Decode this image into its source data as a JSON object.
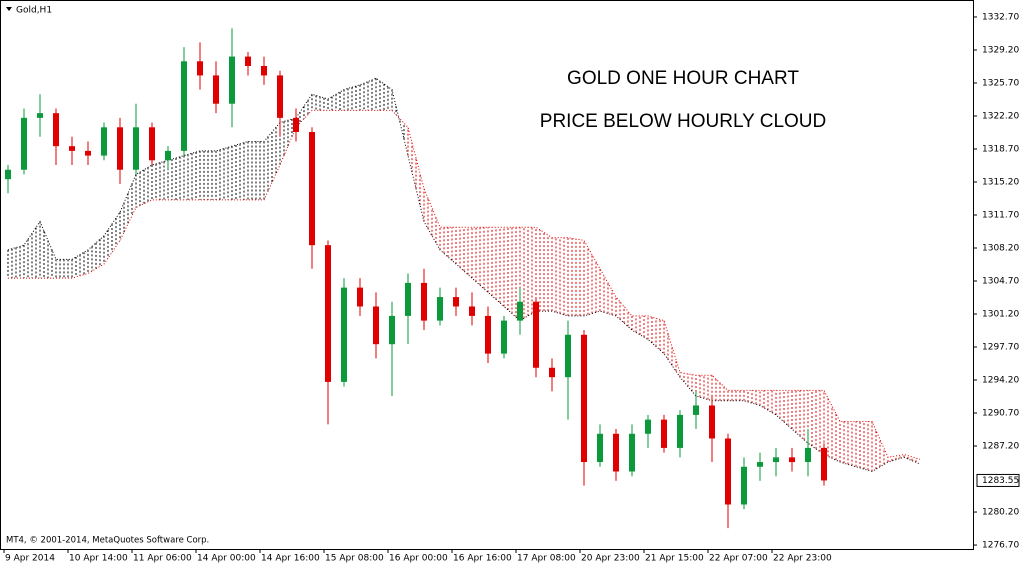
{
  "chart_data": {
    "type": "candlestick",
    "symbol": "Gold,H1",
    "title": "GOLD ONE HOUR CHART",
    "subtitle": "PRICE BELOW HOURLY CLOUD",
    "title_color": "#000000",
    "subtitle_color": "#0000ff",
    "copyright": "MT4, © 2001-2014, MetaQuotes Software Corp.",
    "up_color": "#0a9a3c",
    "down_color": "#e00000",
    "open": [
      1315.5,
      1316.5,
      1322,
      1322.5,
      1319,
      1318.5,
      1318,
      1321,
      1316.5,
      1321,
      1317.5,
      1318.5,
      1328,
      1326.5,
      1323.5,
      1328.5,
      1327.5,
      1326.5,
      1322,
      1320.5,
      1308.5,
      1294,
      1304,
      1302,
      1298,
      1301,
      1304.5,
      1300.5,
      1303,
      1302,
      1301,
      1297,
      1300.5,
      1302.5,
      1295.5,
      1294.5,
      1299,
      1285.5,
      1288.5,
      1284.5,
      1288.5,
      1290,
      1287,
      1290.5,
      1291.5,
      1288,
      1281,
      1285,
      1285.5,
      1286,
      1285.5,
      1287
    ],
    "high": [
      1317,
      1323,
      1324.5,
      1323,
      1320,
      1319.5,
      1321.5,
      1322,
      1323.5,
      1321.5,
      1319,
      1329.5,
      1330,
      1328,
      1331.5,
      1329,
      1328.5,
      1327,
      1323,
      1321,
      1309,
      1305,
      1305,
      1303.5,
      1302.5,
      1305.5,
      1306,
      1304,
      1304,
      1303.5,
      1302,
      1301,
      1304,
      1303,
      1296.5,
      1300.5,
      1299.5,
      1289.5,
      1289,
      1289.5,
      1290.5,
      1290.5,
      1291,
      1293,
      1292.5,
      1288.5,
      1286,
      1286.5,
      1287,
      1287,
      1289,
      1287.5
    ],
    "low": [
      1314,
      1316,
      1320,
      1317,
      1317,
      1317,
      1317.5,
      1315,
      1316,
      1317,
      1316.5,
      1318,
      1325,
      1322.5,
      1321,
      1326.5,
      1325.5,
      1320,
      1319.5,
      1306,
      1289.5,
      1293.5,
      1301,
      1296.5,
      1292.5,
      1298,
      1299.5,
      1300,
      1301,
      1300,
      1296,
      1296.5,
      1299,
      1294.5,
      1293,
      1290,
      1283,
      1285,
      1283.5,
      1284,
      1287,
      1286.5,
      1286,
      1289,
      1285.5,
      1278.5,
      1280.5,
      1283.5,
      1284,
      1284.5,
      1284,
      1283
    ],
    "close": [
      1316.5,
      1322,
      1322.5,
      1319,
      1318.5,
      1318,
      1321,
      1316.5,
      1321,
      1317.5,
      1318.5,
      1328,
      1326.5,
      1323.5,
      1328.5,
      1327.5,
      1326.5,
      1322,
      1320.5,
      1308.5,
      1294,
      1304,
      1302,
      1298,
      1301,
      1304.5,
      1300.5,
      1303,
      1302,
      1301,
      1297,
      1300.5,
      1302.5,
      1295.5,
      1294.5,
      1299,
      1285.5,
      1288.5,
      1284.5,
      1288.5,
      1290,
      1287,
      1290.5,
      1291.5,
      1288,
      1281,
      1285,
      1285.5,
      1286,
      1285.5,
      1287,
      1283.55
    ],
    "cloud": [
      {
        "color": "#000000",
        "values": [
          1308,
          1308.5,
          1311,
          1307,
          1307,
          1308,
          1309.5,
          1312,
          1316,
          1317,
          1317.5,
          1318,
          1318.5,
          1318.5,
          1319,
          1319.5,
          1319.5,
          1321.5,
          1322,
          1324.5,
          1324,
          1325,
          1325.5,
          1326.2,
          1325,
          1318,
          1311,
          1308,
          1306.5,
          1305,
          1303.5,
          1302,
          1300.5,
          1301.5,
          1301.5,
          1301,
          1301,
          1301.5,
          1301,
          1299.5,
          1298.5,
          1297,
          1294.5,
          1292.5,
          1292,
          1292,
          1292,
          1291.5,
          1290.5,
          1289,
          1287.5,
          1286.3,
          1285.5,
          1285,
          1284.5,
          1285.5,
          1286,
          1285.3
        ]
      },
      {
        "color": "#e00000",
        "values": [
          1305,
          1305,
          1305,
          1305,
          1305,
          1305.5,
          1306.5,
          1309,
          1312.5,
          1313.3,
          1313.3,
          1313.3,
          1313.3,
          1313.3,
          1313.3,
          1313.3,
          1313.3,
          1317,
          1321,
          1322.8,
          1322.8,
          1322.8,
          1322.8,
          1322.8,
          1322.8,
          1321,
          1314.5,
          1310.4,
          1310.4,
          1310.4,
          1310.4,
          1310.4,
          1310.4,
          1310.4,
          1309.3,
          1309.3,
          1309,
          1306,
          1303,
          1301,
          1301,
          1300.5,
          1295,
          1294.7,
          1294.7,
          1293.1,
          1293.1,
          1293.1,
          1293.1,
          1293.1,
          1293.1,
          1293.1,
          1289.8,
          1289.8,
          1289.8,
          1286,
          1286.3,
          1285.8
        ]
      }
    ],
    "last_price": 1283.55,
    "xticks": [
      {
        "value": 0,
        "label": "9 Apr 2014"
      },
      {
        "value": 4,
        "label": "10 Apr 14:00"
      },
      {
        "value": 8,
        "label": "11 Apr 06:00"
      },
      {
        "value": 12,
        "label": "14 Apr 00:00"
      },
      {
        "value": 16,
        "label": "14 Apr 16:00"
      },
      {
        "value": 20,
        "label": "15 Apr 08:00"
      },
      {
        "value": 24,
        "label": "16 Apr 00:00"
      },
      {
        "value": 28,
        "label": "16 Apr 16:00"
      },
      {
        "value": 32,
        "label": "17 Apr 08:00"
      },
      {
        "value": 36,
        "label": "20 Apr 23:00"
      },
      {
        "value": 40,
        "label": "21 Apr 15:00"
      },
      {
        "value": 44,
        "label": "22 Apr 07:00"
      },
      {
        "value": 48,
        "label": "22 Apr 23:00"
      }
    ],
    "ylim": [
      1276.28,
      1334.5
    ],
    "yticks": [
      {
        "value": 1332.7,
        "label": "1332.70"
      },
      {
        "value": 1329.2,
        "label": "1329.20"
      },
      {
        "value": 1325.7,
        "label": "1325.70"
      },
      {
        "value": 1322.2,
        "label": "1322.20"
      },
      {
        "value": 1318.7,
        "label": "1318.70"
      },
      {
        "value": 1315.2,
        "label": "1315.20"
      },
      {
        "value": 1311.7,
        "label": "1311.70"
      },
      {
        "value": 1308.2,
        "label": "1308.20"
      },
      {
        "value": 1304.7,
        "label": "1304.70"
      },
      {
        "value": 1301.2,
        "label": "1301.20"
      },
      {
        "value": 1297.7,
        "label": "1297.70"
      },
      {
        "value": 1294.2,
        "label": "1294.20"
      },
      {
        "value": 1290.7,
        "label": "1290.70"
      },
      {
        "value": 1287.2,
        "label": "1287.20"
      },
      {
        "value": 1280.2,
        "label": "1280.20"
      },
      {
        "value": 1276.7,
        "label": "1276.70"
      }
    ]
  }
}
